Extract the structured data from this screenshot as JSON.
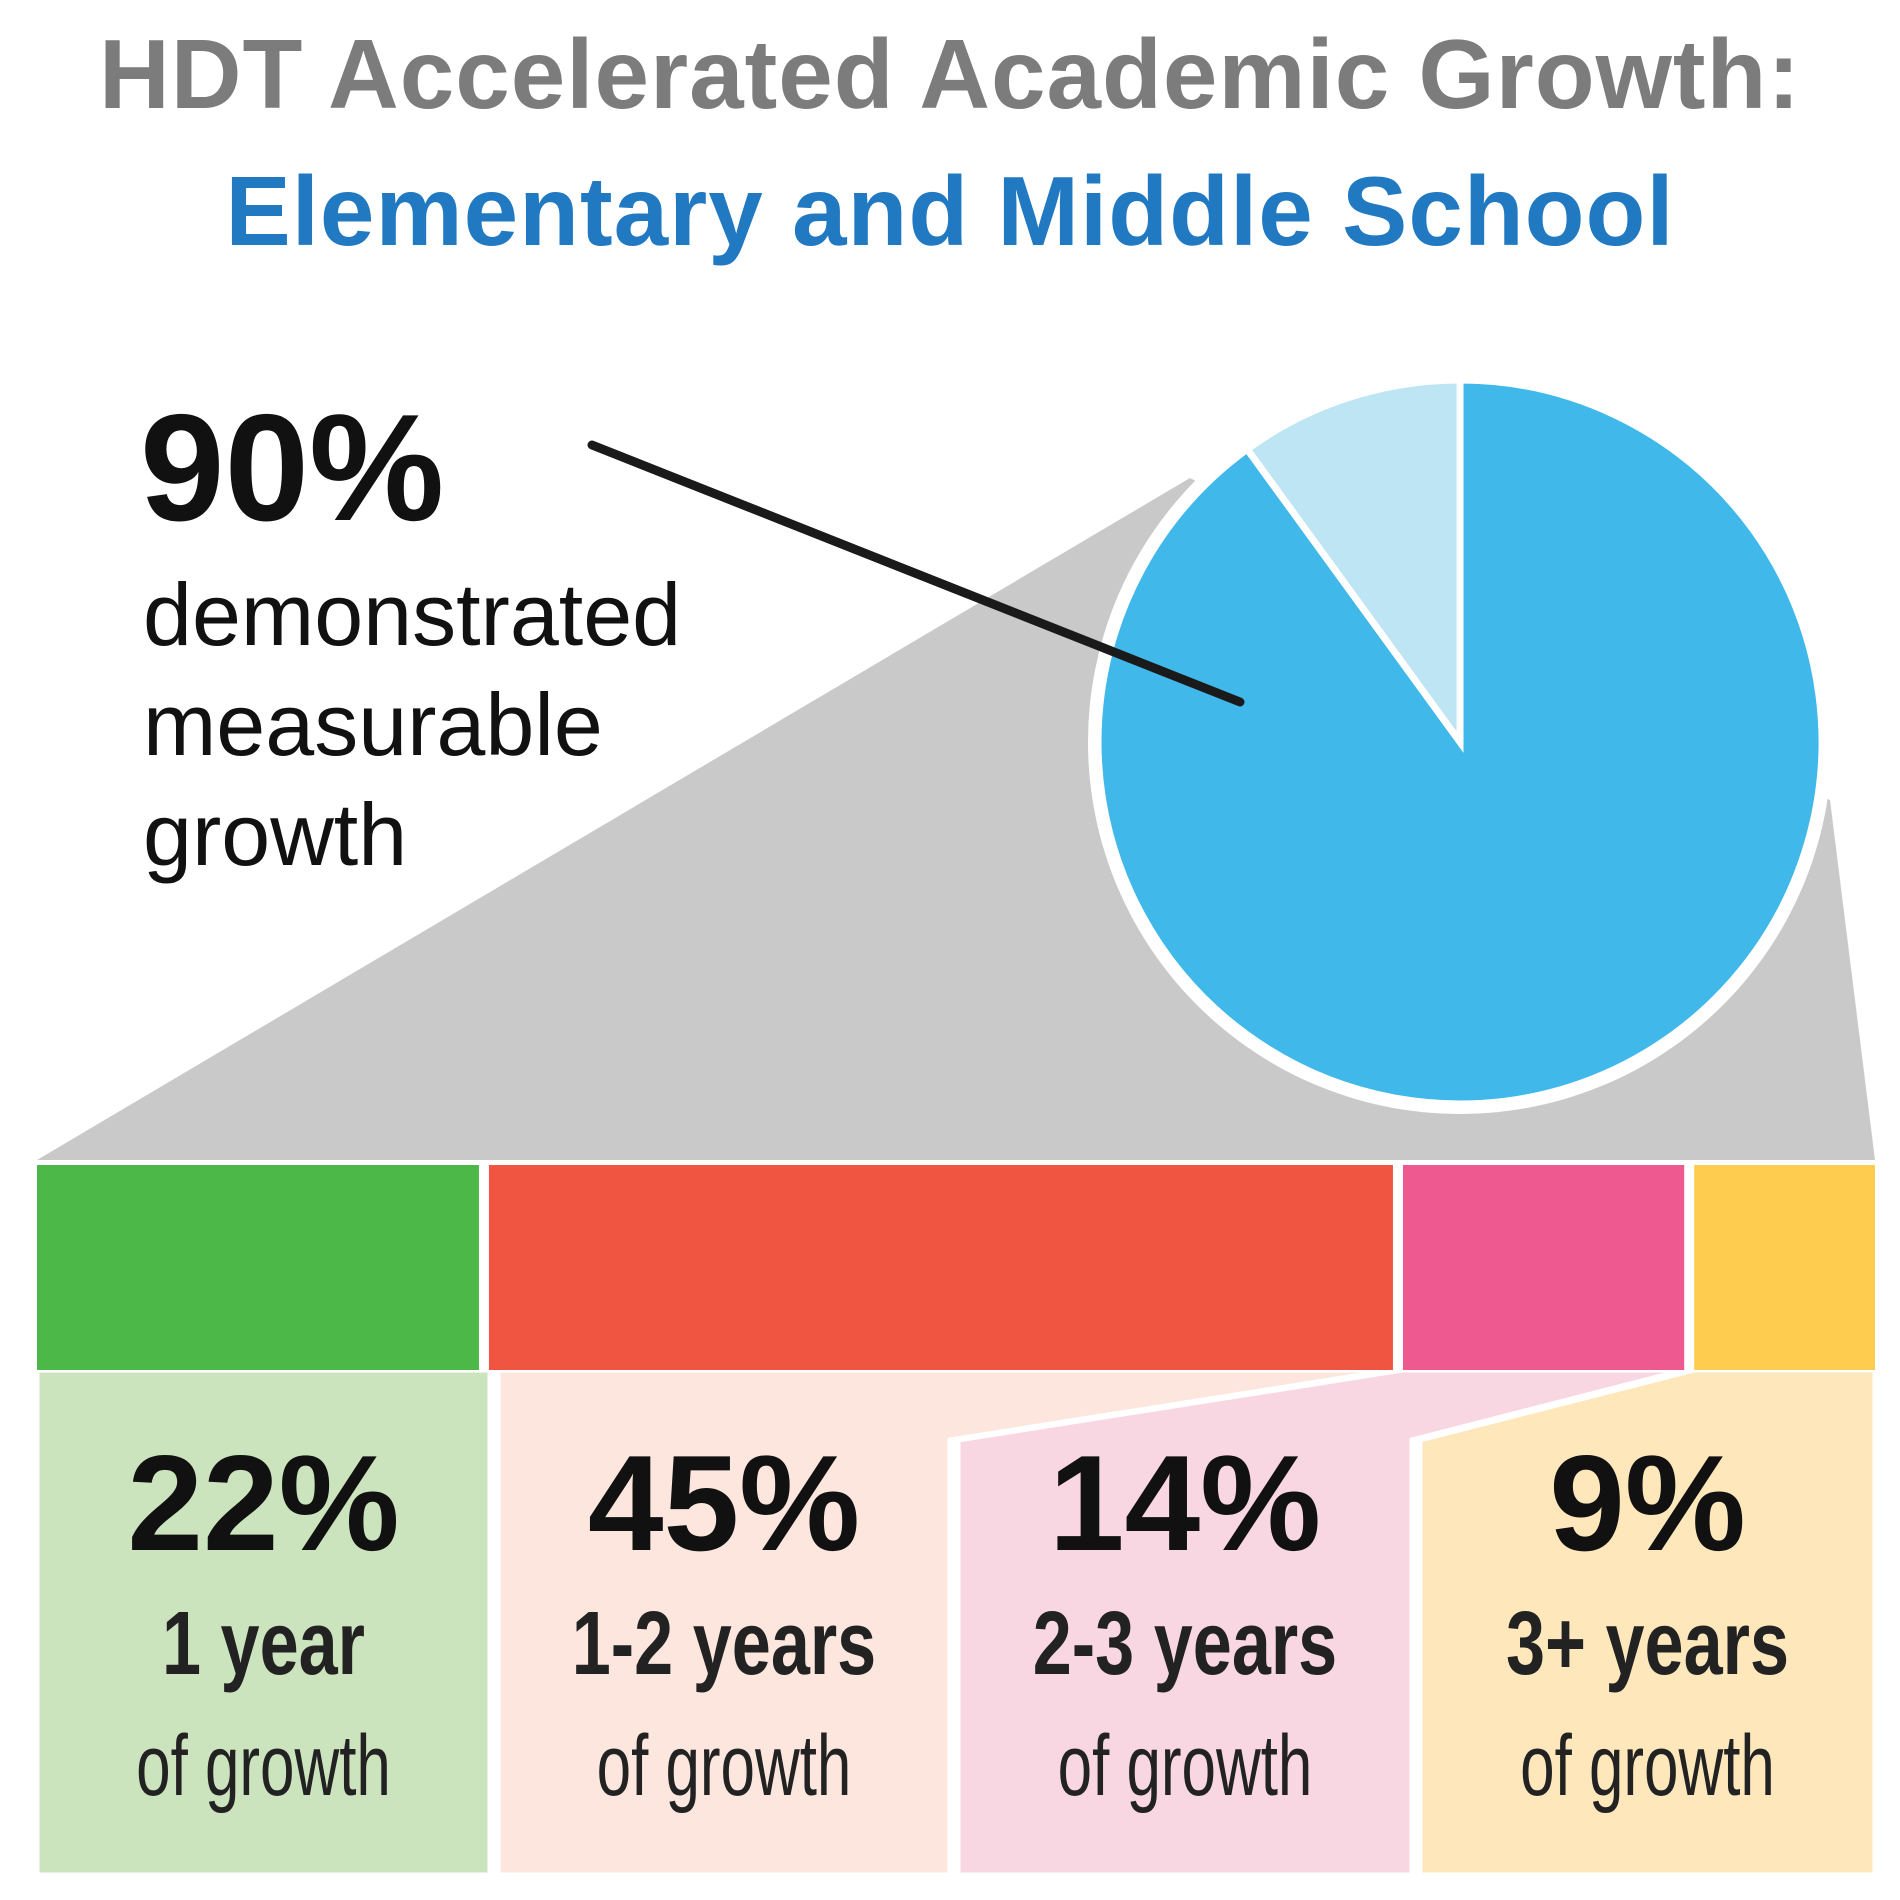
{
  "title": {
    "line1": "HDT Accelerated Academic Growth:",
    "line2": "Elementary and Middle School"
  },
  "headline": {
    "percent": "90%",
    "description": "demonstrated measurable growth"
  },
  "colors": {
    "title_gray": "#7c7c7c",
    "title_blue": "#2179c1",
    "pie_main": "#41b8ea",
    "pie_rest": "#bde5f4",
    "expander_gray": "#c9c9c9"
  },
  "chart_data": [
    {
      "type": "pie",
      "values": [
        90,
        10
      ],
      "colors": [
        "#41b8ea",
        "#bde5f4"
      ],
      "labels": [
        "90%",
        ""
      ]
    },
    {
      "type": "bar",
      "orientation": "stacked-horizontal",
      "categories": [
        "1 year",
        "1-2 years",
        "2-3 years",
        "3+ years"
      ],
      "values": [
        22,
        45,
        14,
        9
      ],
      "value_labels": [
        "22%",
        "45%",
        "14%",
        "9%"
      ],
      "sublabel": "of growth",
      "bar_colors": [
        "#4cb848",
        "#ef5540",
        "#ee5a8f",
        "#fecd4f"
      ],
      "panel_colors": [
        "#cce4bd",
        "#fce6dd",
        "#f9d7e2",
        "#fee8bb"
      ]
    }
  ]
}
